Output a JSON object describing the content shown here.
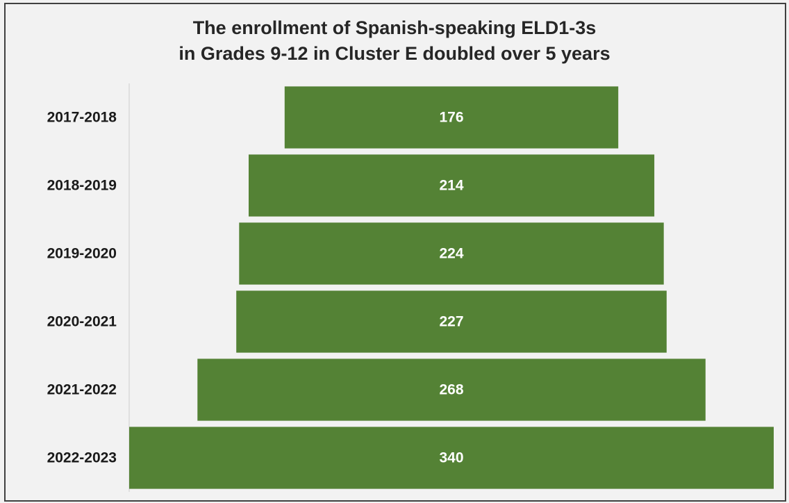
{
  "chart_data": {
    "type": "bar",
    "orientation": "horizontal",
    "style": "funnel",
    "title_lines": [
      "The enrollment of Spanish-speaking ELD1-3s",
      "in Grades 9-12 in Cluster E doubled over 5 years"
    ],
    "categories": [
      "2017-2018",
      "2018-2019",
      "2019-2020",
      "2020-2021",
      "2021-2022",
      "2022-2023"
    ],
    "values": [
      176,
      214,
      224,
      227,
      268,
      340
    ],
    "data_labels": [
      "176",
      "214",
      "224",
      "227",
      "268",
      "340"
    ],
    "xlabel": "",
    "ylabel": "",
    "grid": false,
    "legend": "none",
    "bar_color": "#548235",
    "label_color": "#ffffff"
  }
}
